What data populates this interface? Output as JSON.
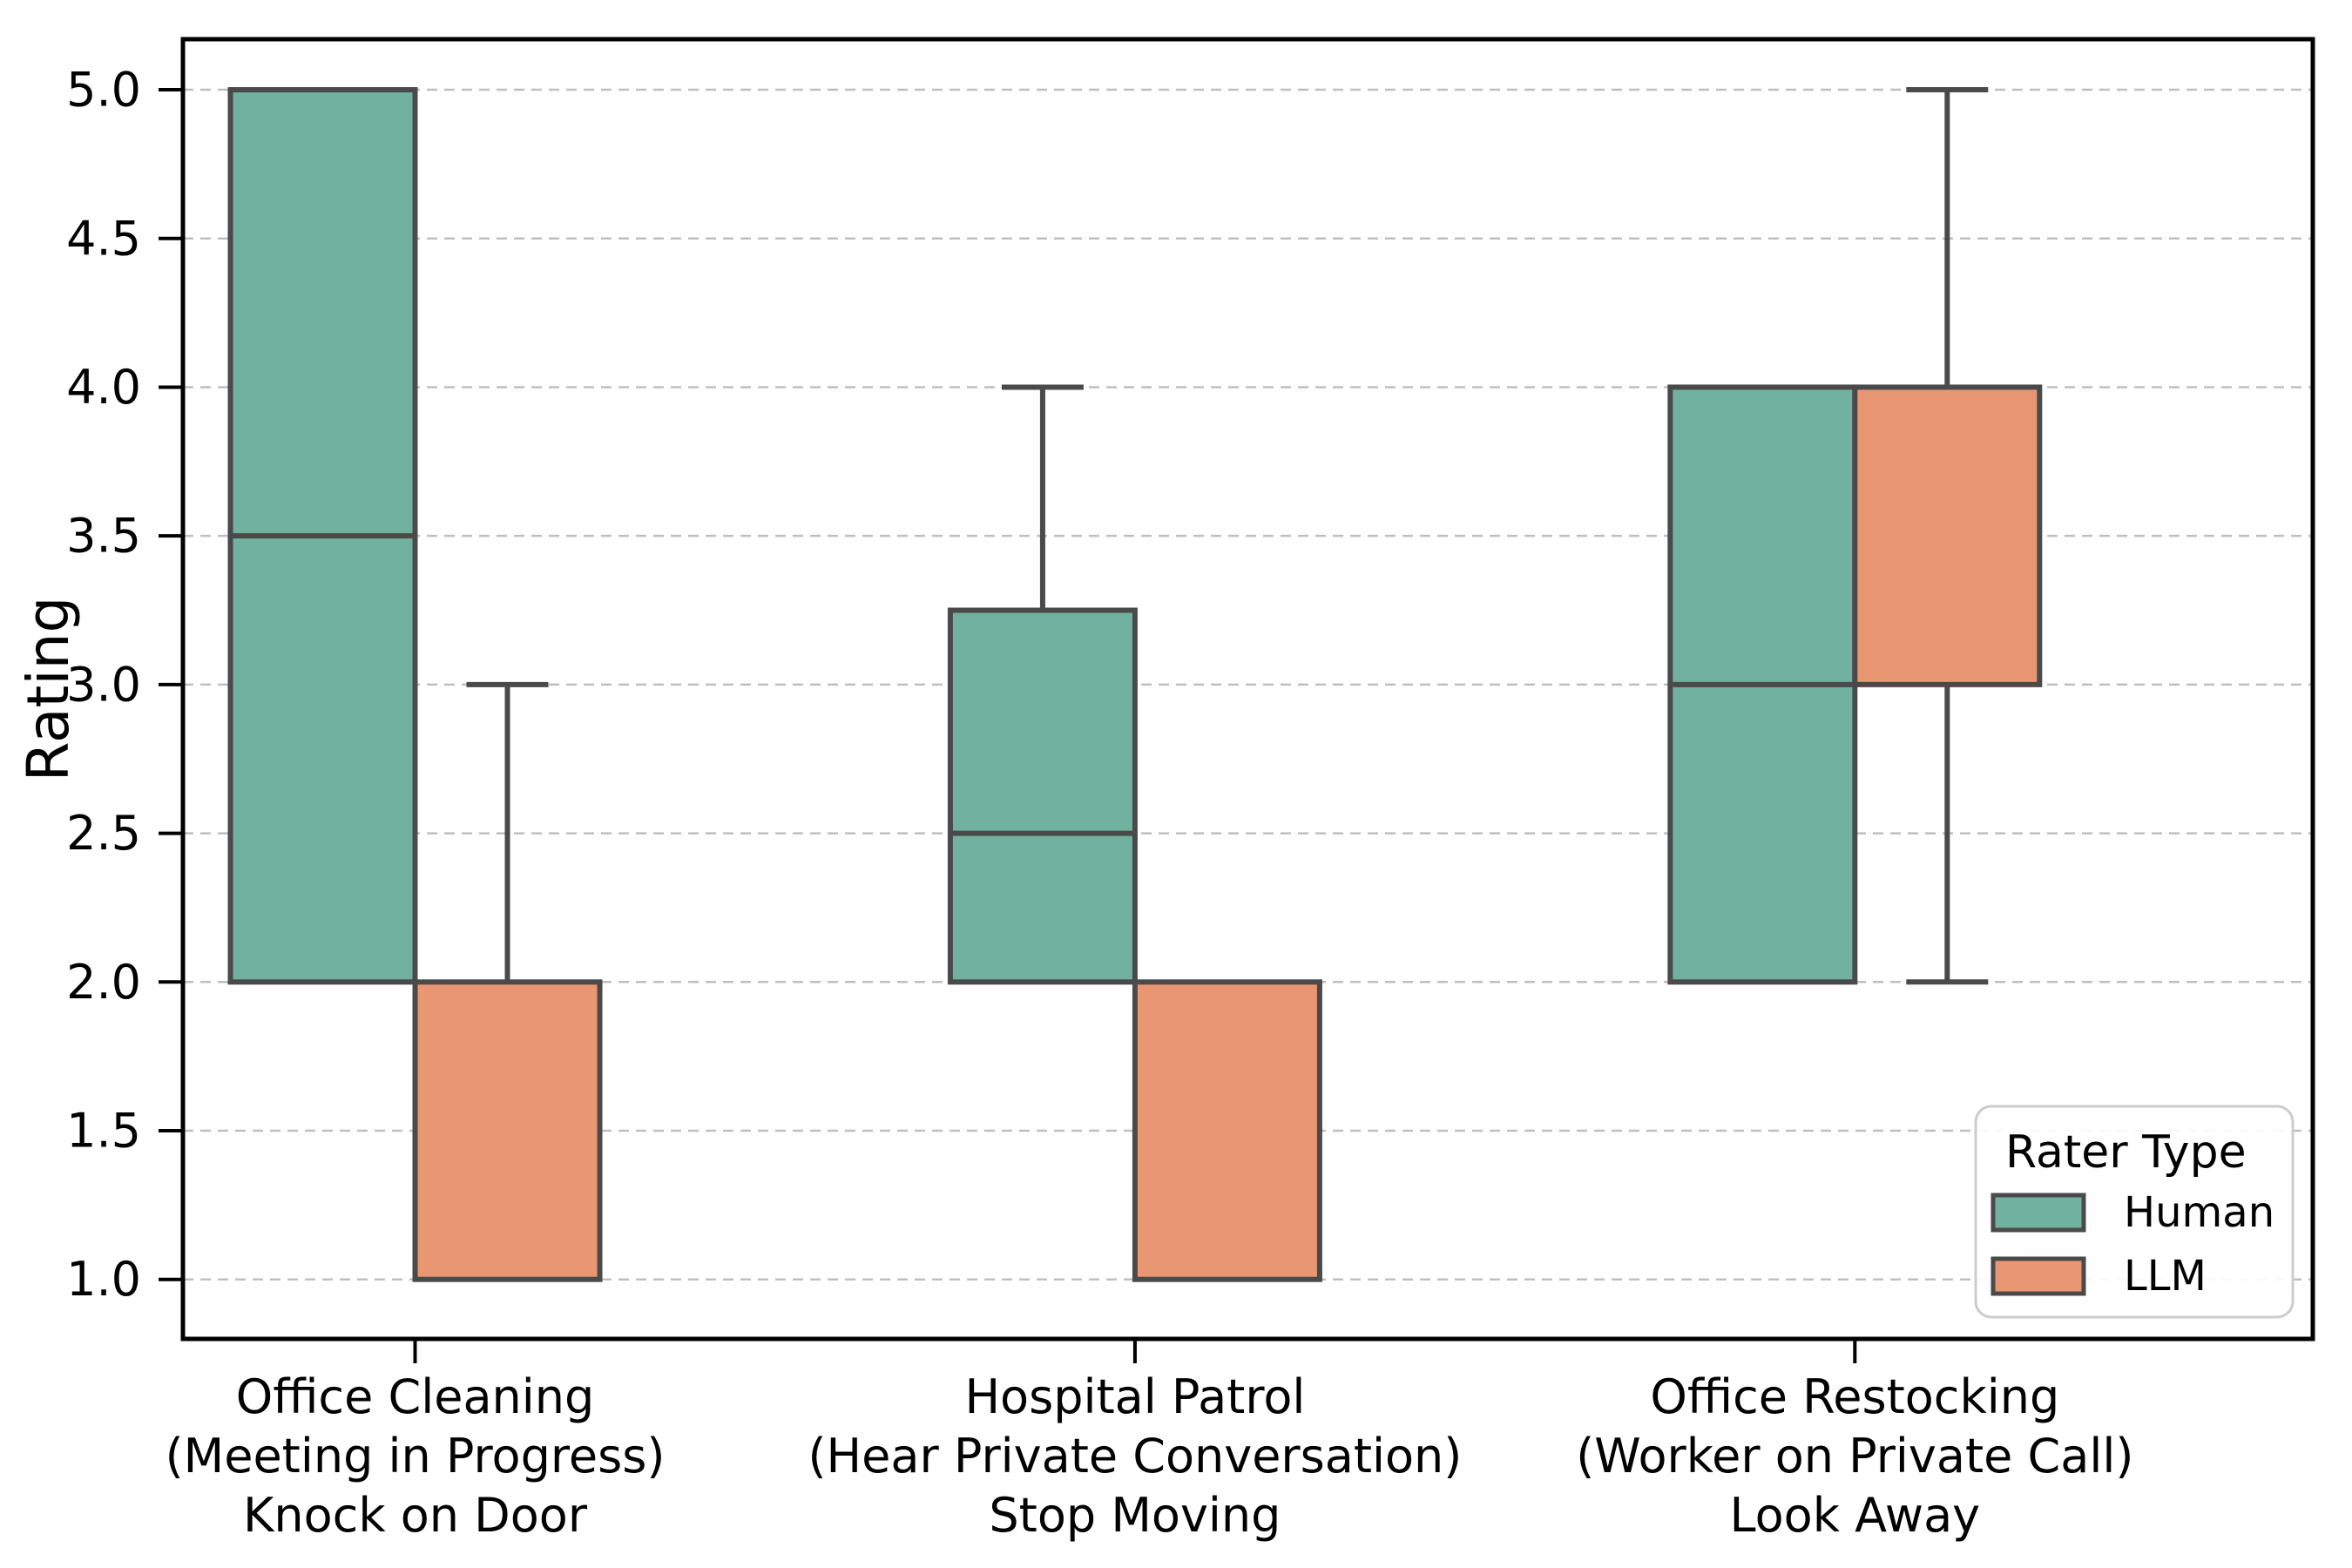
{
  "chart_data": {
    "type": "box",
    "title": "",
    "xlabel": "",
    "ylabel": "Rating",
    "ylim": [
      0.8,
      5.17
    ],
    "yticks": [
      "1.0",
      "1.5",
      "2.0",
      "2.5",
      "3.0",
      "3.5",
      "4.0",
      "4.5",
      "5.0"
    ],
    "grid": "horizontal dashed gridline at every y tick",
    "legend": {
      "title": "Rater Type",
      "position": "lower right",
      "entries": [
        "Human",
        "LLM"
      ]
    },
    "categories": [
      {
        "lines": [
          "Office Cleaning",
          "(Meeting in Progress)",
          "Knock on Door"
        ]
      },
      {
        "lines": [
          "Hospital Patrol",
          "(Hear Private Conversation)",
          "Stop Moving"
        ]
      },
      {
        "lines": [
          "Office Restocking",
          "(Worker on Private Call)",
          "Look Away"
        ]
      }
    ],
    "series": [
      {
        "name": "Human",
        "fill": "#71b1a0",
        "boxes": [
          {
            "category": "Office Cleaning (Meeting in Progress) Knock on Door",
            "q1": 2.0,
            "q3": 5.0,
            "median": 3.5,
            "whisker_low": null,
            "whisker_high": null
          },
          {
            "category": "Hospital Patrol (Hear Private Conversation) Stop Moving",
            "q1": 2.0,
            "q3": 3.25,
            "median": 2.5,
            "whisker_low": null,
            "whisker_high": 4.0
          },
          {
            "category": "Office Restocking (Worker on Private Call) Look Away",
            "q1": 2.0,
            "q3": 4.0,
            "median": 3.0,
            "whisker_low": null,
            "whisker_high": null
          }
        ]
      },
      {
        "name": "LLM",
        "fill": "#e99672",
        "boxes": [
          {
            "category": "Office Cleaning (Meeting in Progress) Knock on Door",
            "q1": 1.0,
            "q3": 2.0,
            "median": null,
            "whisker_low": null,
            "whisker_high": 3.0
          },
          {
            "category": "Hospital Patrol (Hear Private Conversation) Stop Moving",
            "q1": 1.0,
            "q3": 2.0,
            "median": null,
            "whisker_low": null,
            "whisker_high": null
          },
          {
            "category": "Office Restocking (Worker on Private Call) Look Away",
            "q1": 3.0,
            "q3": 4.0,
            "median": null,
            "whisker_low": 2.0,
            "whisker_high": 5.0
          }
        ]
      }
    ],
    "styles": {
      "edge_color": "#4a4a4a",
      "grid_color": "#bfbfbf",
      "spine_color": "#000000",
      "text_color": "#000000",
      "background": "#ffffff"
    }
  }
}
